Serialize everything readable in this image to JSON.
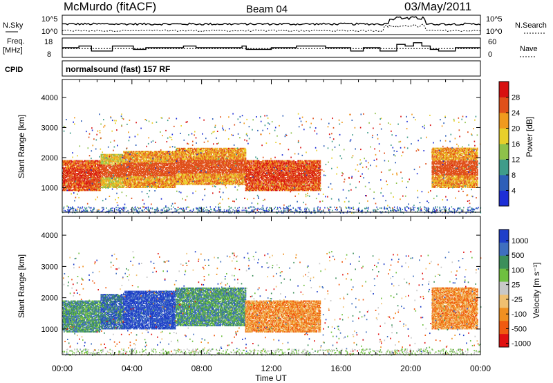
{
  "header": {
    "station": "McMurdo (fitACF)",
    "beam": "Beam 04",
    "date": "03/May/2011"
  },
  "top_panels": {
    "nsky_label": "N.Sky",
    "nsearch_label": "N.Search",
    "exp_top_left": "10^5",
    "exp_bottom_left": "10^0",
    "exp_top_right": "10^5",
    "exp_bottom_right": "10^0",
    "freq_label": "Freq.",
    "freq_unit": "[MHz]",
    "freq_ticks": [
      "18",
      "8"
    ],
    "nave_ticks": [
      "60",
      "0"
    ],
    "nave_label": "Nave",
    "cpid_label": "CPID",
    "cpid_text": "normalsound (fast) 157 RF"
  },
  "chart_data": [
    {
      "type": "heatmap",
      "title": "",
      "ylabel": "Slant Range [km]",
      "xlabel": "",
      "x_ticks": [
        "00:00",
        "04:00",
        "08:00",
        "12:00",
        "16:00",
        "20:00",
        "00:00"
      ],
      "y_ticks": [
        1000,
        2000,
        3000,
        4000
      ],
      "ylim": [
        180,
        4600
      ],
      "xlim_hours": [
        0,
        24
      ],
      "colorbar": {
        "label": "Power [dB]",
        "ticks": [
          "4",
          "8",
          "12",
          "16",
          "20",
          "24",
          "28"
        ],
        "colors": [
          "#1e2fd6",
          "#2e5fb8",
          "#3f9c8a",
          "#8ec14a",
          "#e8cf2a",
          "#f09a1e",
          "#e0501a",
          "#d81010"
        ]
      },
      "echo_regions": [
        {
          "t0": 0.0,
          "t1": 2.2,
          "r0": 900,
          "r1": 1900,
          "level": 6
        },
        {
          "t0": 2.2,
          "t1": 3.5,
          "r0": 1000,
          "r1": 2100,
          "level": 4
        },
        {
          "t0": 3.5,
          "t1": 6.5,
          "r0": 1000,
          "r1": 2200,
          "level": 5
        },
        {
          "t0": 6.5,
          "t1": 10.5,
          "r0": 1100,
          "r1": 2300,
          "level": 5
        },
        {
          "t0": 10.5,
          "t1": 14.8,
          "r0": 900,
          "r1": 1900,
          "level": 6
        },
        {
          "t0": 21.2,
          "t1": 23.8,
          "r0": 1000,
          "r1": 2300,
          "level": 5
        }
      ]
    },
    {
      "type": "heatmap",
      "title": "",
      "ylabel": "Slant Range [km]",
      "xlabel": "Time UT",
      "x_ticks": [
        "00:00",
        "04:00",
        "08:00",
        "12:00",
        "16:00",
        "20:00",
        "00:00"
      ],
      "y_ticks": [
        1000,
        2000,
        3000,
        4000
      ],
      "ylim": [
        180,
        4600
      ],
      "xlim_hours": [
        0,
        24
      ],
      "colorbar": {
        "label": "Velocity [m s⁻¹]",
        "ticks": [
          "1000",
          "500",
          "100",
          "25",
          "-25",
          "-100",
          "-500",
          "-1000"
        ],
        "colors": [
          "#1f3fc9",
          "#3f6fbf",
          "#3c8f5a",
          "#6fc040",
          "#c8c8c8",
          "#f0c070",
          "#f09020",
          "#f05a10",
          "#e01010"
        ]
      },
      "echo_regions": [
        {
          "t0": 0.0,
          "t1": 2.2,
          "r0": 900,
          "r1": 1900,
          "level": 2
        },
        {
          "t0": 2.2,
          "t1": 3.5,
          "r0": 1000,
          "r1": 2100,
          "level": 1
        },
        {
          "t0": 3.5,
          "t1": 6.5,
          "r0": 1000,
          "r1": 2200,
          "level": 0
        },
        {
          "t0": 6.5,
          "t1": 10.5,
          "r0": 1100,
          "r1": 2300,
          "level": 2
        },
        {
          "t0": 10.5,
          "t1": 14.8,
          "r0": 900,
          "r1": 1900,
          "level": 6
        },
        {
          "t0": 21.2,
          "t1": 23.8,
          "r0": 1000,
          "r1": 2300,
          "level": 6
        }
      ]
    }
  ]
}
